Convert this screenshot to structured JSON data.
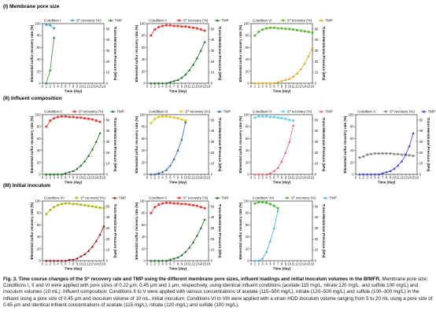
{
  "sections": [
    {
      "title": "(I) Membrane pore size"
    },
    {
      "title": "(II) Influent composition"
    },
    {
      "title": "(III) Initial inoculum"
    }
  ],
  "common": {
    "xlabel": "Time (day)",
    "ylabel_left": "Elemental sulfur recovery rate (%)",
    "ylabel_right": "Trans-Membrane Pressure (kPa)",
    "series_s0_name": "S⁰ recovery (%)",
    "series_tmp_name": "TMP",
    "x_ticks": [
      "0",
      "1",
      "2",
      "3",
      "4",
      "5",
      "6",
      "7",
      "8",
      "9",
      "10",
      "11",
      "12",
      "13",
      "14",
      "15",
      "16"
    ],
    "y_left_ticks": [
      "0",
      "20",
      "40",
      "60",
      "80",
      "100"
    ],
    "y_right_ticks": [
      "0",
      "10",
      "20",
      "30",
      "40",
      "50"
    ]
  },
  "chart_data": [
    {
      "type": "line",
      "panel": "I-1",
      "condition": "Condition I",
      "s0_color": "#3fa9d8",
      "tmp_color": "#2e8b2e",
      "s0_marker": "square",
      "tmp_marker": "triangle",
      "xlim": [
        0,
        16
      ],
      "ylim_left": [
        0,
        100
      ],
      "ylim_right": [
        0,
        55
      ],
      "series": [
        {
          "name": "S⁰ recovery (%)",
          "x": [
            1,
            2,
            3
          ],
          "y": [
            98,
            97,
            92
          ]
        },
        {
          "name": "TMP",
          "x": [
            1,
            2,
            3
          ],
          "y": [
            0,
            12,
            42
          ]
        }
      ]
    },
    {
      "type": "line",
      "panel": "I-2",
      "condition": "Condition II",
      "s0_color": "#e23b3b",
      "tmp_color": "#1f6f2a",
      "s0_marker": "square",
      "tmp_marker": "triangle",
      "xlim": [
        0,
        16
      ],
      "ylim_left": [
        0,
        100
      ],
      "ylim_right": [
        0,
        55
      ],
      "series": [
        {
          "name": "S⁰ recovery (%)",
          "x": [
            1,
            2,
            3,
            4,
            5,
            6,
            7,
            8,
            9,
            10,
            11,
            12,
            13,
            14,
            15
          ],
          "y": [
            80,
            90,
            94,
            96,
            97,
            97,
            96,
            96,
            95,
            95,
            94,
            93,
            92,
            90,
            88
          ]
        },
        {
          "name": "TMP",
          "x": [
            1,
            2,
            3,
            4,
            5,
            6,
            7,
            8,
            9,
            10,
            11,
            12,
            13,
            14,
            15
          ],
          "y": [
            0,
            0,
            0,
            0,
            0,
            1,
            2,
            3,
            5,
            8,
            12,
            17,
            23,
            30,
            38
          ]
        }
      ]
    },
    {
      "type": "line",
      "panel": "I-3",
      "condition": "Condition VI",
      "s0_color": "#5cb82e",
      "tmp_color": "#e8a317",
      "s0_marker": "square",
      "tmp_marker": "triangle",
      "xlim": [
        0,
        16
      ],
      "ylim_left": [
        0,
        100
      ],
      "ylim_right": [
        0,
        55
      ],
      "series": [
        {
          "name": "S⁰ recovery (%)",
          "x": [
            1,
            2,
            3,
            4,
            5,
            6,
            7,
            8,
            9,
            10,
            11,
            12,
            13,
            14,
            15,
            16
          ],
          "y": [
            80,
            86,
            90,
            92,
            93,
            93,
            92,
            92,
            91,
            91,
            90,
            89,
            88,
            87,
            86,
            85
          ]
        },
        {
          "name": "TMP",
          "x": [
            1,
            2,
            3,
            4,
            5,
            6,
            7,
            8,
            9,
            10,
            11,
            12,
            13,
            14,
            15,
            16
          ],
          "y": [
            0,
            0,
            0,
            0,
            0,
            0,
            1,
            2,
            3,
            4,
            6,
            9,
            13,
            18,
            25,
            33
          ]
        }
      ]
    },
    {
      "type": "line",
      "panel": "II-1",
      "condition": "Condition II",
      "s0_color": "#e23b3b",
      "tmp_color": "#1f6f2a",
      "s0_marker": "square",
      "tmp_marker": "triangle",
      "xlim": [
        0,
        16
      ],
      "ylim_left": [
        0,
        100
      ],
      "ylim_right": [
        0,
        55
      ],
      "series": [
        {
          "name": "S⁰ recovery (%)",
          "x": [
            1,
            2,
            3,
            4,
            5,
            6,
            7,
            8,
            9,
            10,
            11,
            12,
            13,
            14,
            15
          ],
          "y": [
            80,
            90,
            94,
            96,
            97,
            97,
            96,
            96,
            95,
            95,
            94,
            93,
            92,
            90,
            88
          ]
        },
        {
          "name": "TMP",
          "x": [
            1,
            2,
            3,
            4,
            5,
            6,
            7,
            8,
            9,
            10,
            11,
            12,
            13,
            14,
            15
          ],
          "y": [
            0,
            0,
            0,
            0,
            0,
            1,
            2,
            3,
            5,
            8,
            12,
            17,
            23,
            30,
            38
          ]
        }
      ]
    },
    {
      "type": "line",
      "panel": "II-2",
      "condition": "Condition III",
      "s0_color": "#e8c21a",
      "tmp_color": "#2f5fa8",
      "s0_marker": "square",
      "tmp_marker": "triangle",
      "xlim": [
        0,
        16
      ],
      "ylim_left": [
        0,
        100
      ],
      "ylim_right": [
        0,
        55
      ],
      "series": [
        {
          "name": "S⁰ recovery (%)",
          "x": [
            1,
            2,
            3,
            4,
            5,
            6,
            7,
            8,
            9,
            10
          ],
          "y": [
            86,
            93,
            96,
            97,
            97,
            96,
            95,
            94,
            92,
            90
          ]
        },
        {
          "name": "TMP",
          "x": [
            1,
            2,
            3,
            4,
            5,
            6,
            7,
            8,
            9,
            10
          ],
          "y": [
            0,
            0,
            1,
            2,
            4,
            8,
            14,
            22,
            32,
            48
          ]
        }
      ]
    },
    {
      "type": "line",
      "panel": "II-3",
      "condition": "Condition IV",
      "s0_color": "#5fd0e8",
      "tmp_color": "#e85f7c",
      "s0_marker": "square",
      "tmp_marker": "triangle",
      "xlim": [
        0,
        16
      ],
      "ylim_left": [
        0,
        100
      ],
      "ylim_right": [
        0,
        55
      ],
      "series": [
        {
          "name": "S⁰ recovery (%)",
          "x": [
            1,
            2,
            3,
            4,
            5,
            6,
            7,
            8,
            9,
            10,
            11
          ],
          "y": [
            95,
            97,
            97,
            97,
            96,
            96,
            95,
            94,
            93,
            91,
            90
          ]
        },
        {
          "name": "TMP",
          "x": [
            1,
            2,
            3,
            4,
            5,
            6,
            7,
            8,
            9,
            10,
            11
          ],
          "y": [
            0,
            0,
            0,
            0,
            1,
            3,
            6,
            12,
            20,
            30,
            45
          ]
        }
      ]
    },
    {
      "type": "line",
      "panel": "II-4",
      "condition": "Condition V",
      "s0_color": "#8a8a8a",
      "tmp_color": "#3a3ad8",
      "s0_marker": "square",
      "tmp_marker": "triangle",
      "xlim": [
        0,
        16
      ],
      "ylim_left": [
        0,
        100
      ],
      "ylim_right": [
        0,
        55
      ],
      "series": [
        {
          "name": "S⁰ recovery (%)",
          "x": [
            1,
            2,
            3,
            4,
            5,
            6,
            7,
            8,
            9,
            10,
            11,
            12,
            13,
            14,
            15
          ],
          "y": [
            28,
            30,
            33,
            34,
            35,
            35,
            35,
            35,
            35,
            34,
            34,
            33,
            33,
            32,
            31
          ]
        },
        {
          "name": "TMP",
          "x": [
            1,
            2,
            3,
            4,
            5,
            6,
            7,
            8,
            9,
            10,
            11,
            12,
            13,
            14,
            15
          ],
          "y": [
            0,
            0,
            0,
            0,
            0,
            0,
            1,
            2,
            3,
            5,
            8,
            12,
            18,
            26,
            38
          ]
        }
      ]
    },
    {
      "type": "line",
      "panel": "III-1",
      "condition": "Condition VII",
      "s0_color": "#b7b51a",
      "tmp_color": "#8c1a1a",
      "s0_marker": "square",
      "tmp_marker": "triangle",
      "xlim": [
        0,
        16
      ],
      "ylim_left": [
        0,
        100
      ],
      "ylim_right": [
        0,
        55
      ],
      "series": [
        {
          "name": "S⁰ recovery (%)",
          "x": [
            1,
            2,
            3,
            4,
            5,
            6,
            7,
            8,
            9,
            10,
            11,
            12,
            13,
            14,
            15,
            16
          ],
          "y": [
            78,
            85,
            90,
            93,
            95,
            96,
            96,
            95,
            95,
            94,
            93,
            92,
            91,
            90,
            89,
            88
          ]
        },
        {
          "name": "TMP",
          "x": [
            1,
            2,
            3,
            4,
            5,
            6,
            7,
            8,
            9,
            10,
            11,
            12,
            13,
            14,
            15,
            16
          ],
          "y": [
            0,
            0,
            0,
            0,
            0,
            0,
            1,
            1,
            2,
            4,
            6,
            9,
            13,
            18,
            24,
            32
          ]
        }
      ]
    },
    {
      "type": "line",
      "panel": "III-2",
      "condition": "Condition II",
      "s0_color": "#e23b3b",
      "tmp_color": "#1f6f2a",
      "s0_marker": "square",
      "tmp_marker": "triangle",
      "xlim": [
        0,
        16
      ],
      "ylim_left": [
        0,
        100
      ],
      "ylim_right": [
        0,
        55
      ],
      "series": [
        {
          "name": "S⁰ recovery (%)",
          "x": [
            1,
            2,
            3,
            4,
            5,
            6,
            7,
            8,
            9,
            10,
            11,
            12,
            13,
            14,
            15
          ],
          "y": [
            80,
            90,
            94,
            96,
            97,
            97,
            96,
            96,
            95,
            95,
            94,
            93,
            92,
            90,
            88
          ]
        },
        {
          "name": "TMP",
          "x": [
            1,
            2,
            3,
            4,
            5,
            6,
            7,
            8,
            9,
            10,
            11,
            12,
            13,
            14,
            15
          ],
          "y": [
            0,
            0,
            0,
            0,
            0,
            1,
            2,
            3,
            5,
            8,
            12,
            17,
            23,
            30,
            38
          ]
        }
      ]
    },
    {
      "type": "line",
      "panel": "III-3",
      "condition": "Condition VIII",
      "s0_color": "#4cb82e",
      "tmp_color": "#3fa9e8",
      "s0_marker": "square",
      "tmp_marker": "triangle",
      "xlim": [
        0,
        16
      ],
      "ylim_left": [
        0,
        100
      ],
      "ylim_right": [
        0,
        55
      ],
      "series": [
        {
          "name": "S⁰ recovery (%)",
          "x": [
            1,
            2,
            3,
            4,
            5,
            6,
            7
          ],
          "y": [
            96,
            98,
            98,
            97,
            95,
            92,
            88
          ]
        },
        {
          "name": "TMP",
          "x": [
            1,
            2,
            3,
            4,
            5,
            6,
            7
          ],
          "y": [
            0,
            0,
            2,
            8,
            18,
            30,
            46
          ]
        }
      ]
    }
  ],
  "caption": {
    "lead": "Fig. 3. Time course changes of the S⁰ recovery rate and TMP using the different membrane pore sizes, influent loadings and initial inoculum volumes in the BfMFR.",
    "body": "Membrane pore size: Conditions I, II and VI were applied with pore sizes of 0.22 μm, 0.45 μm and 1 μm, respectively, using identical influent conditions (acetate:115 mg/L, nitrate:120 mg/L, and sulfide:100 mg/L) and inoculum volumes (10 mL). Influent composition: Conditions II to V were applied with various concentrations of acetate (115–500 mg/L), nitrate (120–500 mg/L) and sulfide (100–300 mg/L) in the influent using a pore size of 0.45 μm and inoculum volume of 10 mL. Initial inoculum: Conditions VI to VIII were applied with a strain HDD inoculum volume ranging from 5 to 20 mL using a pore size of 0.45 μm and identical influent concentrations of acetate (115 mg/L), nitrate (120 mg/L) and sulfide (100 mg/L)."
  }
}
